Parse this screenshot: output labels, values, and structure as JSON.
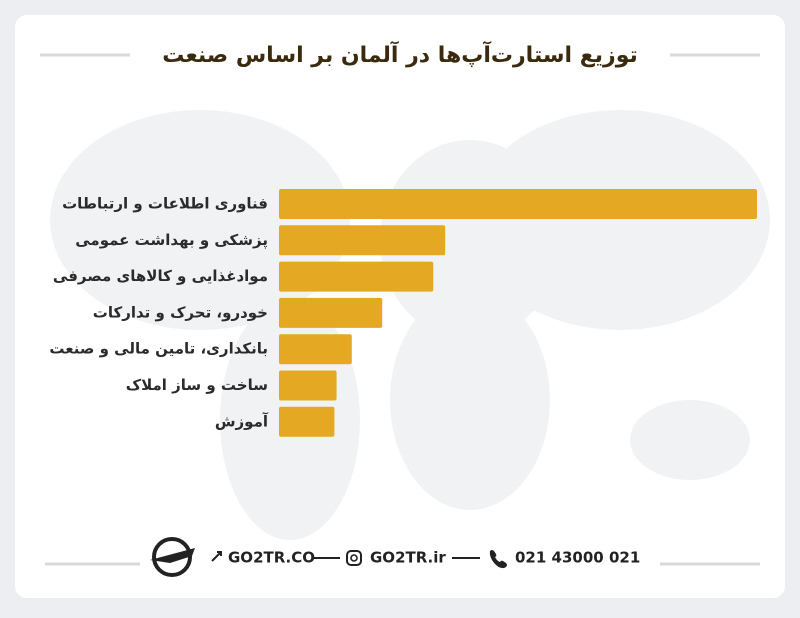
{
  "chart_data": {
    "type": "bar",
    "orientation": "horizontal",
    "title": "توزیع استارت‌آپ‌ها در آلمان بر اساس صنعت",
    "categories": [
      "فناوری اطلاعات و ارتباطات",
      "پزشکی و بهداشت عمومی",
      "موادغذایی و کالاهای مصرفی",
      "خودرو، تحرک و تدارکات",
      "بانکداری، تامین مالی و صنعت",
      "ساخت و ساز املاک",
      "آموزش"
    ],
    "values": [
      44,
      15.3,
      14.2,
      9.5,
      6.7,
      5.3,
      5.1
    ],
    "color": "#e5a823",
    "xlim": [
      0,
      44
    ]
  },
  "footer": {
    "website": "GO2TR.CO",
    "instagram": "GO2TR.ir",
    "phone": "021 43000 021"
  }
}
